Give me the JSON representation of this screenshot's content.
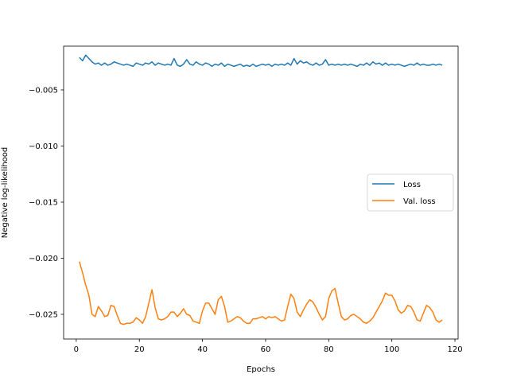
{
  "chart_data": {
    "type": "line",
    "title": "",
    "xlabel": "Epochs",
    "ylabel": "Negative log-likelihood",
    "xlim": [
      -4,
      121
    ],
    "ylim": [
      -0.0272,
      -0.0011
    ],
    "xticks": [
      0,
      20,
      40,
      60,
      80,
      100,
      120
    ],
    "xtick_labels": [
      "0",
      "20",
      "40",
      "60",
      "80",
      "100",
      "120"
    ],
    "yticks": [
      -0.005,
      -0.01,
      -0.015,
      -0.02,
      -0.025
    ],
    "ytick_labels": [
      "−0.005",
      "−0.010",
      "−0.015",
      "−0.020",
      "−0.025"
    ],
    "legend_position": "center-right",
    "grid": false,
    "series": [
      {
        "name": "Loss",
        "color": "#1f77b4",
        "x": [
          1,
          2,
          3,
          4,
          5,
          6,
          7,
          8,
          9,
          10,
          11,
          12,
          13,
          14,
          15,
          16,
          17,
          18,
          19,
          20,
          21,
          22,
          23,
          24,
          25,
          26,
          27,
          28,
          29,
          30,
          31,
          32,
          33,
          34,
          35,
          36,
          37,
          38,
          39,
          40,
          41,
          42,
          43,
          44,
          45,
          46,
          47,
          48,
          49,
          50,
          51,
          52,
          53,
          54,
          55,
          56,
          57,
          58,
          59,
          60,
          61,
          62,
          63,
          64,
          65,
          66,
          67,
          68,
          69,
          70,
          71,
          72,
          73,
          74,
          75,
          76,
          77,
          78,
          79,
          80,
          81,
          82,
          83,
          84,
          85,
          86,
          87,
          88,
          89,
          90,
          91,
          92,
          93,
          94,
          95,
          96,
          97,
          98,
          99,
          100,
          101,
          102,
          103,
          104,
          105,
          106,
          107,
          108,
          109,
          110,
          111,
          112,
          113,
          114,
          115,
          116
        ],
        "values": [
          -0.0021,
          -0.0024,
          -0.0019,
          -0.0022,
          -0.0025,
          -0.0027,
          -0.0026,
          -0.0028,
          -0.0026,
          -0.0028,
          -0.0027,
          -0.0025,
          -0.0026,
          -0.0027,
          -0.0028,
          -0.0027,
          -0.0028,
          -0.0029,
          -0.0026,
          -0.0027,
          -0.0028,
          -0.0026,
          -0.0027,
          -0.0025,
          -0.0028,
          -0.0026,
          -0.0027,
          -0.0028,
          -0.0027,
          -0.0028,
          -0.0022,
          -0.0028,
          -0.0029,
          -0.0027,
          -0.0023,
          -0.0027,
          -0.0028,
          -0.0025,
          -0.0027,
          -0.0028,
          -0.0026,
          -0.0027,
          -0.0029,
          -0.0027,
          -0.0028,
          -0.0026,
          -0.0029,
          -0.0027,
          -0.0028,
          -0.0029,
          -0.0028,
          -0.0027,
          -0.0029,
          -0.0028,
          -0.0029,
          -0.0027,
          -0.0029,
          -0.0028,
          -0.0027,
          -0.0028,
          -0.0027,
          -0.0029,
          -0.0027,
          -0.0028,
          -0.0027,
          -0.0028,
          -0.0026,
          -0.0028,
          -0.0022,
          -0.0027,
          -0.0024,
          -0.0026,
          -0.0025,
          -0.0027,
          -0.0028,
          -0.0026,
          -0.0028,
          -0.0027,
          -0.0023,
          -0.0028,
          -0.0027,
          -0.0028,
          -0.0027,
          -0.0028,
          -0.0027,
          -0.0028,
          -0.0027,
          -0.0028,
          -0.0029,
          -0.0027,
          -0.0028,
          -0.0026,
          -0.0028,
          -0.0025,
          -0.0027,
          -0.0026,
          -0.0028,
          -0.0026,
          -0.0028,
          -0.0027,
          -0.0028,
          -0.0027,
          -0.0028,
          -0.0029,
          -0.0028,
          -0.0027,
          -0.0028,
          -0.0026,
          -0.0028,
          -0.0027,
          -0.0028,
          -0.0028,
          -0.0027,
          -0.0028,
          -0.0027,
          -0.0028
        ]
      },
      {
        "name": "Val. loss",
        "color": "#ff7f0e",
        "x": [
          1,
          2,
          3,
          4,
          5,
          6,
          7,
          8,
          9,
          10,
          11,
          12,
          13,
          14,
          15,
          16,
          17,
          18,
          19,
          20,
          21,
          22,
          23,
          24,
          25,
          26,
          27,
          28,
          29,
          30,
          31,
          32,
          33,
          34,
          35,
          36,
          37,
          38,
          39,
          40,
          41,
          42,
          43,
          44,
          45,
          46,
          47,
          48,
          49,
          50,
          51,
          52,
          53,
          54,
          55,
          56,
          57,
          58,
          59,
          60,
          61,
          62,
          63,
          64,
          65,
          66,
          67,
          68,
          69,
          70,
          71,
          72,
          73,
          74,
          75,
          76,
          77,
          78,
          79,
          80,
          81,
          82,
          83,
          84,
          85,
          86,
          87,
          88,
          89,
          90,
          91,
          92,
          93,
          94,
          95,
          96,
          97,
          98,
          99,
          100,
          101,
          102,
          103,
          104,
          105,
          106,
          107,
          108,
          109,
          110,
          111,
          112,
          113,
          114,
          115,
          116
        ],
        "values": [
          -0.0203,
          -0.0213,
          -0.0224,
          -0.0233,
          -0.025,
          -0.0252,
          -0.0243,
          -0.0247,
          -0.0252,
          -0.0251,
          -0.0242,
          -0.0243,
          -0.0251,
          -0.0258,
          -0.0259,
          -0.0258,
          -0.0258,
          -0.0257,
          -0.0253,
          -0.0255,
          -0.0258,
          -0.0252,
          -0.024,
          -0.0228,
          -0.0244,
          -0.0254,
          -0.0255,
          -0.0254,
          -0.0252,
          -0.0248,
          -0.0248,
          -0.0252,
          -0.0249,
          -0.0245,
          -0.025,
          -0.0251,
          -0.0256,
          -0.0257,
          -0.0258,
          -0.0247,
          -0.024,
          -0.024,
          -0.0245,
          -0.025,
          -0.0237,
          -0.0234,
          -0.0243,
          -0.0257,
          -0.0256,
          -0.0254,
          -0.0252,
          -0.0253,
          -0.0256,
          -0.0258,
          -0.0258,
          -0.0254,
          -0.0254,
          -0.0253,
          -0.0252,
          -0.0254,
          -0.0252,
          -0.0253,
          -0.0252,
          -0.0254,
          -0.0256,
          -0.0255,
          -0.0243,
          -0.0232,
          -0.0236,
          -0.0248,
          -0.0252,
          -0.0246,
          -0.0241,
          -0.0237,
          -0.0239,
          -0.0244,
          -0.025,
          -0.0255,
          -0.0252,
          -0.0236,
          -0.0229,
          -0.0227,
          -0.024,
          -0.0252,
          -0.0255,
          -0.0254,
          -0.0251,
          -0.025,
          -0.0252,
          -0.0254,
          -0.0257,
          -0.0258,
          -0.0256,
          -0.0253,
          -0.0248,
          -0.0243,
          -0.0238,
          -0.0231,
          -0.0233,
          -0.0233,
          -0.0238,
          -0.0246,
          -0.0249,
          -0.0247,
          -0.0242,
          -0.0243,
          -0.0248,
          -0.0255,
          -0.0256,
          -0.0249,
          -0.0242,
          -0.0244,
          -0.0248,
          -0.0255,
          -0.0257,
          -0.0255
        ]
      }
    ]
  }
}
